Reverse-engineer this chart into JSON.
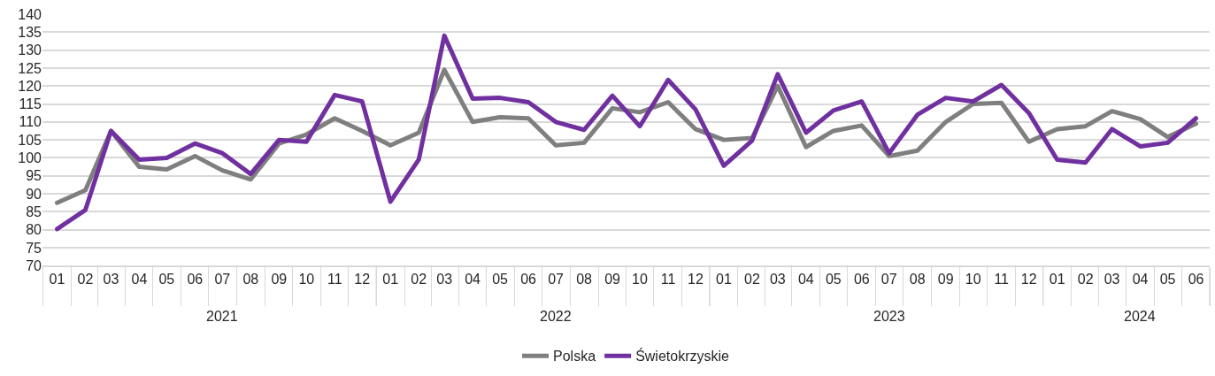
{
  "chart_data": {
    "type": "line",
    "x": [
      "2021-01",
      "2021-02",
      "2021-03",
      "2021-04",
      "2021-05",
      "2021-06",
      "2021-07",
      "2021-08",
      "2021-09",
      "2021-10",
      "2021-11",
      "2021-12",
      "2022-01",
      "2022-02",
      "2022-03",
      "2022-04",
      "2022-05",
      "2022-06",
      "2022-07",
      "2022-08",
      "2022-09",
      "2022-10",
      "2022-11",
      "2022-12",
      "2023-01",
      "2023-02",
      "2023-03",
      "2023-04",
      "2023-05",
      "2023-06",
      "2023-07",
      "2023-08",
      "2023-09",
      "2023-10",
      "2023-11",
      "2023-12",
      "2024-01",
      "2024-02",
      "2024-03",
      "2024-04",
      "2024-05",
      "2024-06"
    ],
    "series": [
      {
        "name": "Polska",
        "color": "#7f7f7f",
        "values": [
          87.5,
          91,
          107.5,
          97.5,
          96.8,
          100.5,
          96.5,
          94,
          104,
          106.5,
          111,
          107.5,
          103.5,
          107,
          124.5,
          110,
          111.3,
          111,
          103.5,
          104.2,
          113.8,
          112.7,
          115.5,
          108,
          105,
          105.5,
          120,
          103,
          107.5,
          109,
          100.5,
          102,
          110,
          115,
          115.3,
          104.5,
          108,
          108.8,
          113,
          110.8,
          105.8,
          109.5
        ]
      },
      {
        "name": "Świetokrzyskie",
        "color": "#7030a0",
        "values": [
          80.2,
          85.5,
          107.5,
          99.5,
          100,
          104,
          101.3,
          95.5,
          105,
          104.5,
          117.5,
          115.7,
          87.8,
          99.5,
          134,
          116.5,
          116.7,
          115.5,
          110,
          107.8,
          117.3,
          108.8,
          121.7,
          113.5,
          97.8,
          104.8,
          123.3,
          107,
          113.2,
          115.7,
          101.3,
          112,
          116.7,
          115.7,
          120.3,
          112.5,
          99.5,
          98.7,
          108,
          103.2,
          104.2,
          111
        ]
      }
    ],
    "xlim": [
      "2020-12-16",
      "2024-06-16"
    ],
    "xticks": [
      {
        "value": "2021-01",
        "label": "01"
      },
      {
        "value": "2021-02",
        "label": "02"
      },
      {
        "value": "2021-03",
        "label": "03"
      },
      {
        "value": "2021-04",
        "label": "04"
      },
      {
        "value": "2021-05",
        "label": "05"
      },
      {
        "value": "2021-06",
        "label": "06"
      },
      {
        "value": "2021-07",
        "label": "07"
      },
      {
        "value": "2021-08",
        "label": "08"
      },
      {
        "value": "2021-09",
        "label": "09"
      },
      {
        "value": "2021-10",
        "label": "10"
      },
      {
        "value": "2021-11",
        "label": "11"
      },
      {
        "value": "2021-12",
        "label": "12"
      },
      {
        "value": "2022-01",
        "label": "01"
      },
      {
        "value": "2022-02",
        "label": "02"
      },
      {
        "value": "2022-03",
        "label": "03"
      },
      {
        "value": "2022-04",
        "label": "04"
      },
      {
        "value": "2022-05",
        "label": "05"
      },
      {
        "value": "2022-06",
        "label": "06"
      },
      {
        "value": "2022-07",
        "label": "07"
      },
      {
        "value": "2022-08",
        "label": "08"
      },
      {
        "value": "2022-09",
        "label": "09"
      },
      {
        "value": "2022-10",
        "label": "10"
      },
      {
        "value": "2022-11",
        "label": "11"
      },
      {
        "value": "2022-12",
        "label": "12"
      },
      {
        "value": "2023-01",
        "label": "01"
      },
      {
        "value": "2023-02",
        "label": "02"
      },
      {
        "value": "2023-03",
        "label": "03"
      },
      {
        "value": "2023-04",
        "label": "04"
      },
      {
        "value": "2023-05",
        "label": "05"
      },
      {
        "value": "2023-06",
        "label": "06"
      },
      {
        "value": "2023-07",
        "label": "07"
      },
      {
        "value": "2023-08",
        "label": "08"
      },
      {
        "value": "2023-09",
        "label": "09"
      },
      {
        "value": "2023-10",
        "label": "10"
      },
      {
        "value": "2023-11",
        "label": "11"
      },
      {
        "value": "2023-12",
        "label": "12"
      },
      {
        "value": "2024-01",
        "label": "01"
      },
      {
        "value": "2024-02",
        "label": "02"
      },
      {
        "value": "2024-03",
        "label": "03"
      },
      {
        "value": "2024-04",
        "label": "04"
      },
      {
        "value": "2024-05",
        "label": "05"
      },
      {
        "value": "2024-06",
        "label": "06"
      }
    ],
    "x2lim": [
      "2020-12-16",
      "2024-06-16"
    ],
    "x2ticks": [
      {
        "value": "2021-07-01",
        "label": "2021"
      },
      {
        "value": "2022-07-01",
        "label": "2022"
      },
      {
        "value": "2023-07-01",
        "label": "2023"
      },
      {
        "value": "2024-03-31",
        "label": "2024"
      }
    ],
    "ylim": [
      70,
      140
    ],
    "yticks": [
      70,
      75,
      80,
      85,
      90,
      95,
      100,
      105,
      110,
      115,
      120,
      125,
      130,
      135,
      140
    ],
    "grid": "y",
    "legend": "bottom",
    "marker": "none",
    "line_style": "solid"
  }
}
